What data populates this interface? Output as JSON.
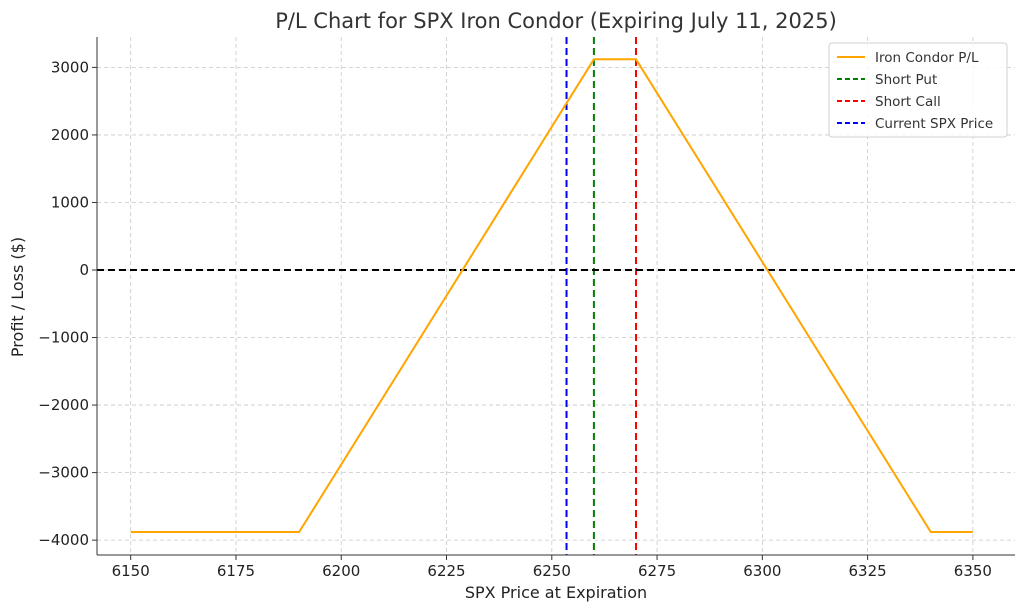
{
  "chart_data": {
    "type": "line",
    "title": "P/L Chart for SPX Iron Condor (Expiring July 11, 2025)",
    "xlabel": "SPX Price at Expiration",
    "ylabel": "Profit / Loss ($)",
    "xlim": [
      6142,
      6360
    ],
    "ylim": [
      -4220,
      3450
    ],
    "xticks": [
      6150,
      6175,
      6200,
      6225,
      6250,
      6275,
      6300,
      6325,
      6350
    ],
    "yticks": [
      -4000,
      -3000,
      -2000,
      -1000,
      0,
      1000,
      2000,
      3000
    ],
    "xtick_labels": [
      "6150",
      "6175",
      "6200",
      "6225",
      "6250",
      "6275",
      "6300",
      "6325",
      "6350"
    ],
    "ytick_labels": [
      "−4000",
      "−3000",
      "−2000",
      "−1000",
      "0",
      "1000",
      "2000",
      "3000"
    ],
    "grid": true,
    "legend_position": "top-right",
    "series": [
      {
        "name": "Iron Condor P/L",
        "color": "#FFA500",
        "x": [
          6150,
          6190,
          6260,
          6270,
          6340,
          6350
        ],
        "y": [
          -3880,
          -3880,
          3120,
          3120,
          -3880,
          -3880
        ]
      }
    ],
    "reference_lines": [
      {
        "name": "Short Put",
        "orientation": "vertical",
        "value": 6260,
        "color": "#008000",
        "style": "dashed"
      },
      {
        "name": "Short Call",
        "orientation": "vertical",
        "value": 6270,
        "color": "#FF0000",
        "style": "dashed"
      },
      {
        "name": "Current SPX Price",
        "orientation": "vertical",
        "value": 6253.5,
        "color": "#0000FF",
        "style": "dashed"
      },
      {
        "orientation": "horizontal",
        "value": 0,
        "color": "#000000",
        "style": "dashed"
      }
    ],
    "legend": [
      "Iron Condor P/L",
      "Short Put",
      "Short Call",
      "Current SPX Price"
    ]
  }
}
